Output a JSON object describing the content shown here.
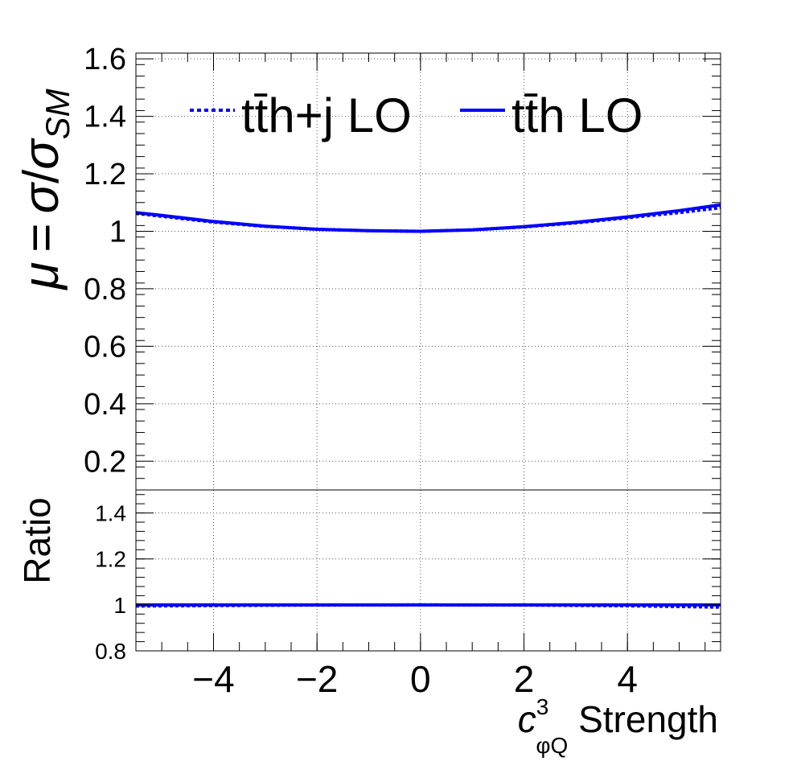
{
  "chart_data": [
    {
      "type": "line",
      "panel": "main",
      "ylabel": "μ = σ/σ_SM",
      "ylim": [
        0.1,
        1.62
      ],
      "xlim": [
        -5.5,
        5.8
      ],
      "yticks": [
        0.2,
        0.4,
        0.6,
        0.8,
        1.0,
        1.2,
        1.4,
        1.6
      ],
      "ytick_labels": [
        "0.2",
        "0.4",
        "0.6",
        "0.8",
        "1",
        "1.2",
        "1.4",
        "1.6"
      ],
      "grid": true,
      "legend_position": "top",
      "x": [
        -5.5,
        -5,
        -4,
        -3,
        -2,
        -1,
        0,
        1,
        2,
        3,
        4,
        5,
        5.8
      ],
      "series": [
        {
          "name": "tt̄h+j LO",
          "style": "dotted",
          "color": "#0000ff",
          "values": [
            1.062,
            1.052,
            1.032,
            1.017,
            1.007,
            1.002,
            1.0,
            1.005,
            1.015,
            1.029,
            1.047,
            1.065,
            1.082
          ]
        },
        {
          "name": "tt̄h LO",
          "style": "solid",
          "color": "#0000ff",
          "values": [
            1.065,
            1.055,
            1.034,
            1.018,
            1.007,
            1.002,
            1.0,
            1.005,
            1.016,
            1.031,
            1.05,
            1.072,
            1.092
          ]
        }
      ]
    },
    {
      "type": "line",
      "panel": "ratio",
      "ylabel": "Ratio",
      "xlabel_main": "c",
      "xlabel_sup": "3",
      "xlabel_sub": "φQ",
      "xlabel_rest": " Strength",
      "ylim": [
        0.8,
        1.5
      ],
      "xlim": [
        -5.5,
        5.8
      ],
      "yticks": [
        0.8,
        1.0,
        1.2,
        1.4
      ],
      "ytick_labels": [
        "0.8",
        "1",
        "1.2",
        "1.4"
      ],
      "xticks": [
        -4,
        -2,
        0,
        2,
        4
      ],
      "xtick_labels": [
        "−4",
        "−2",
        "0",
        "2",
        "4"
      ],
      "grid": true,
      "x": [
        -5.5,
        -4,
        -2,
        0,
        2,
        4,
        5.8
      ],
      "series": [
        {
          "name": "tt̄h+j LO",
          "style": "dotted",
          "color": "#0000ff",
          "values": [
            0.995,
            0.997,
            0.999,
            1.0,
            0.999,
            0.996,
            0.99
          ]
        },
        {
          "name": "tt̄h LO",
          "style": "solid",
          "color": "#0000ff",
          "values": [
            1.0,
            1.0,
            1.0,
            1.0,
            1.0,
            1.0,
            1.0
          ]
        }
      ]
    }
  ]
}
